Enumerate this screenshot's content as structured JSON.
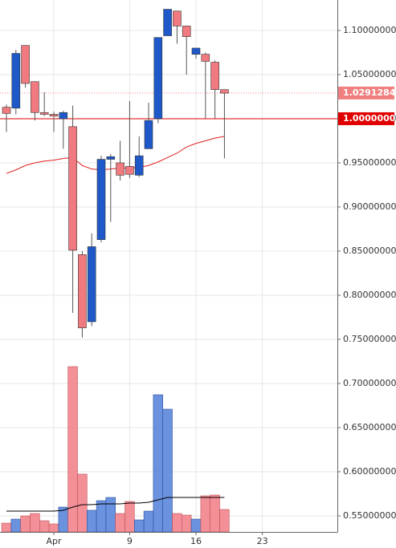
{
  "chart_data": {
    "type": "candlestick",
    "x": [
      "03-27",
      "03-28",
      "03-29",
      "03-30",
      "03-31",
      "04-01",
      "04-02",
      "04-03",
      "04-04",
      "04-05",
      "04-06",
      "04-07",
      "04-08",
      "04-09",
      "04-10",
      "04-11",
      "04-12",
      "04-13",
      "04-14",
      "04-15",
      "04-16",
      "04-17",
      "04-18",
      "04-19"
    ],
    "open": [
      1.013,
      1.012,
      1.083,
      1.042,
      1.007,
      1.005,
      1.0,
      0.991,
      0.846,
      0.77,
      0.863,
      0.954,
      0.95,
      0.946,
      0.936,
      0.966,
      1.0,
      1.094,
      1.122,
      1.105,
      1.073,
      1.073,
      1.064,
      1.033
    ],
    "high": [
      1.016,
      1.078,
      1.083,
      1.042,
      1.03,
      1.008,
      1.009,
      1.015,
      0.85,
      0.87,
      0.958,
      0.96,
      0.975,
      1.02,
      0.98,
      1.018,
      1.092,
      1.124,
      1.122,
      1.105,
      1.08,
      1.075,
      1.066,
      1.033
    ],
    "low": [
      0.985,
      1.005,
      1.035,
      0.998,
      1.003,
      0.985,
      0.966,
      0.78,
      0.752,
      0.765,
      0.86,
      0.883,
      0.93,
      0.933,
      0.934,
      0.966,
      0.995,
      1.094,
      1.085,
      1.05,
      1.068,
      1.0,
      1.0,
      0.955
    ],
    "close": [
      1.006,
      1.074,
      1.04,
      1.007,
      1.005,
      1.003,
      1.007,
      0.851,
      0.763,
      0.855,
      0.954,
      0.957,
      0.936,
      0.937,
      0.958,
      0.998,
      1.092,
      1.124,
      1.105,
      1.093,
      1.08,
      1.065,
      1.033,
      1.029
    ],
    "up_color": "#1f58c8",
    "down_color": "#f07a80",
    "ma": {
      "color": "#e02020",
      "values": [
        0.938,
        0.942,
        0.947,
        0.95,
        0.952,
        0.953,
        0.955,
        0.956,
        0.947,
        0.943,
        0.942,
        0.943,
        0.944,
        0.944,
        0.945,
        0.947,
        0.951,
        0.956,
        0.961,
        0.968,
        0.972,
        0.975,
        0.978,
        0.98
      ]
    },
    "volume": {
      "up_color": "#5a86dc",
      "down_color": "#f2848c",
      "values": [
        11,
        16,
        20,
        23,
        14,
        10,
        31,
        206,
        72,
        27,
        39,
        43,
        23,
        38,
        15,
        26,
        171,
        153,
        23,
        21,
        16,
        45,
        46,
        28
      ]
    },
    "volume_ma": {
      "color": "#000000",
      "values": [
        26,
        26,
        26,
        26,
        26,
        26,
        27,
        31,
        34,
        34,
        35,
        35,
        35,
        36,
        36,
        37,
        40,
        43,
        43,
        43,
        43,
        43,
        43,
        43
      ]
    },
    "price_lines": [
      {
        "value": 1.02912841,
        "label": "1.02912841",
        "color": "#f08080",
        "style": "dotted"
      },
      {
        "value": 1.0,
        "label": "1.00000000",
        "color": "#e00000",
        "style": "solid"
      }
    ],
    "xlim": [
      "03-26",
      "05-01"
    ],
    "xticks": [
      {
        "value": "04-01",
        "label": "Apr"
      },
      {
        "value": "04-09",
        "label": "9"
      },
      {
        "value": "04-16",
        "label": "16"
      },
      {
        "value": "04-23",
        "label": "23"
      }
    ],
    "ylim": [
      0.5318,
      1.1345
    ],
    "yticks": [
      {
        "value": 0.55,
        "label": "0.55000000"
      },
      {
        "value": 0.6,
        "label": "0.60000000"
      },
      {
        "value": 0.65,
        "label": "0.65000000"
      },
      {
        "value": 0.7,
        "label": "0.70000000"
      },
      {
        "value": 0.75,
        "label": "0.75000000"
      },
      {
        "value": 0.8,
        "label": "0.80000000"
      },
      {
        "value": 0.85,
        "label": "0.85000000"
      },
      {
        "value": 0.9,
        "label": "0.90000000"
      },
      {
        "value": 0.95,
        "label": "0.95000000"
      },
      {
        "value": 1.0,
        "label": "1.00000000"
      },
      {
        "value": 1.05,
        "label": "1.05000000"
      },
      {
        "value": 1.1,
        "label": "1.10000000"
      }
    ],
    "grid": true
  }
}
